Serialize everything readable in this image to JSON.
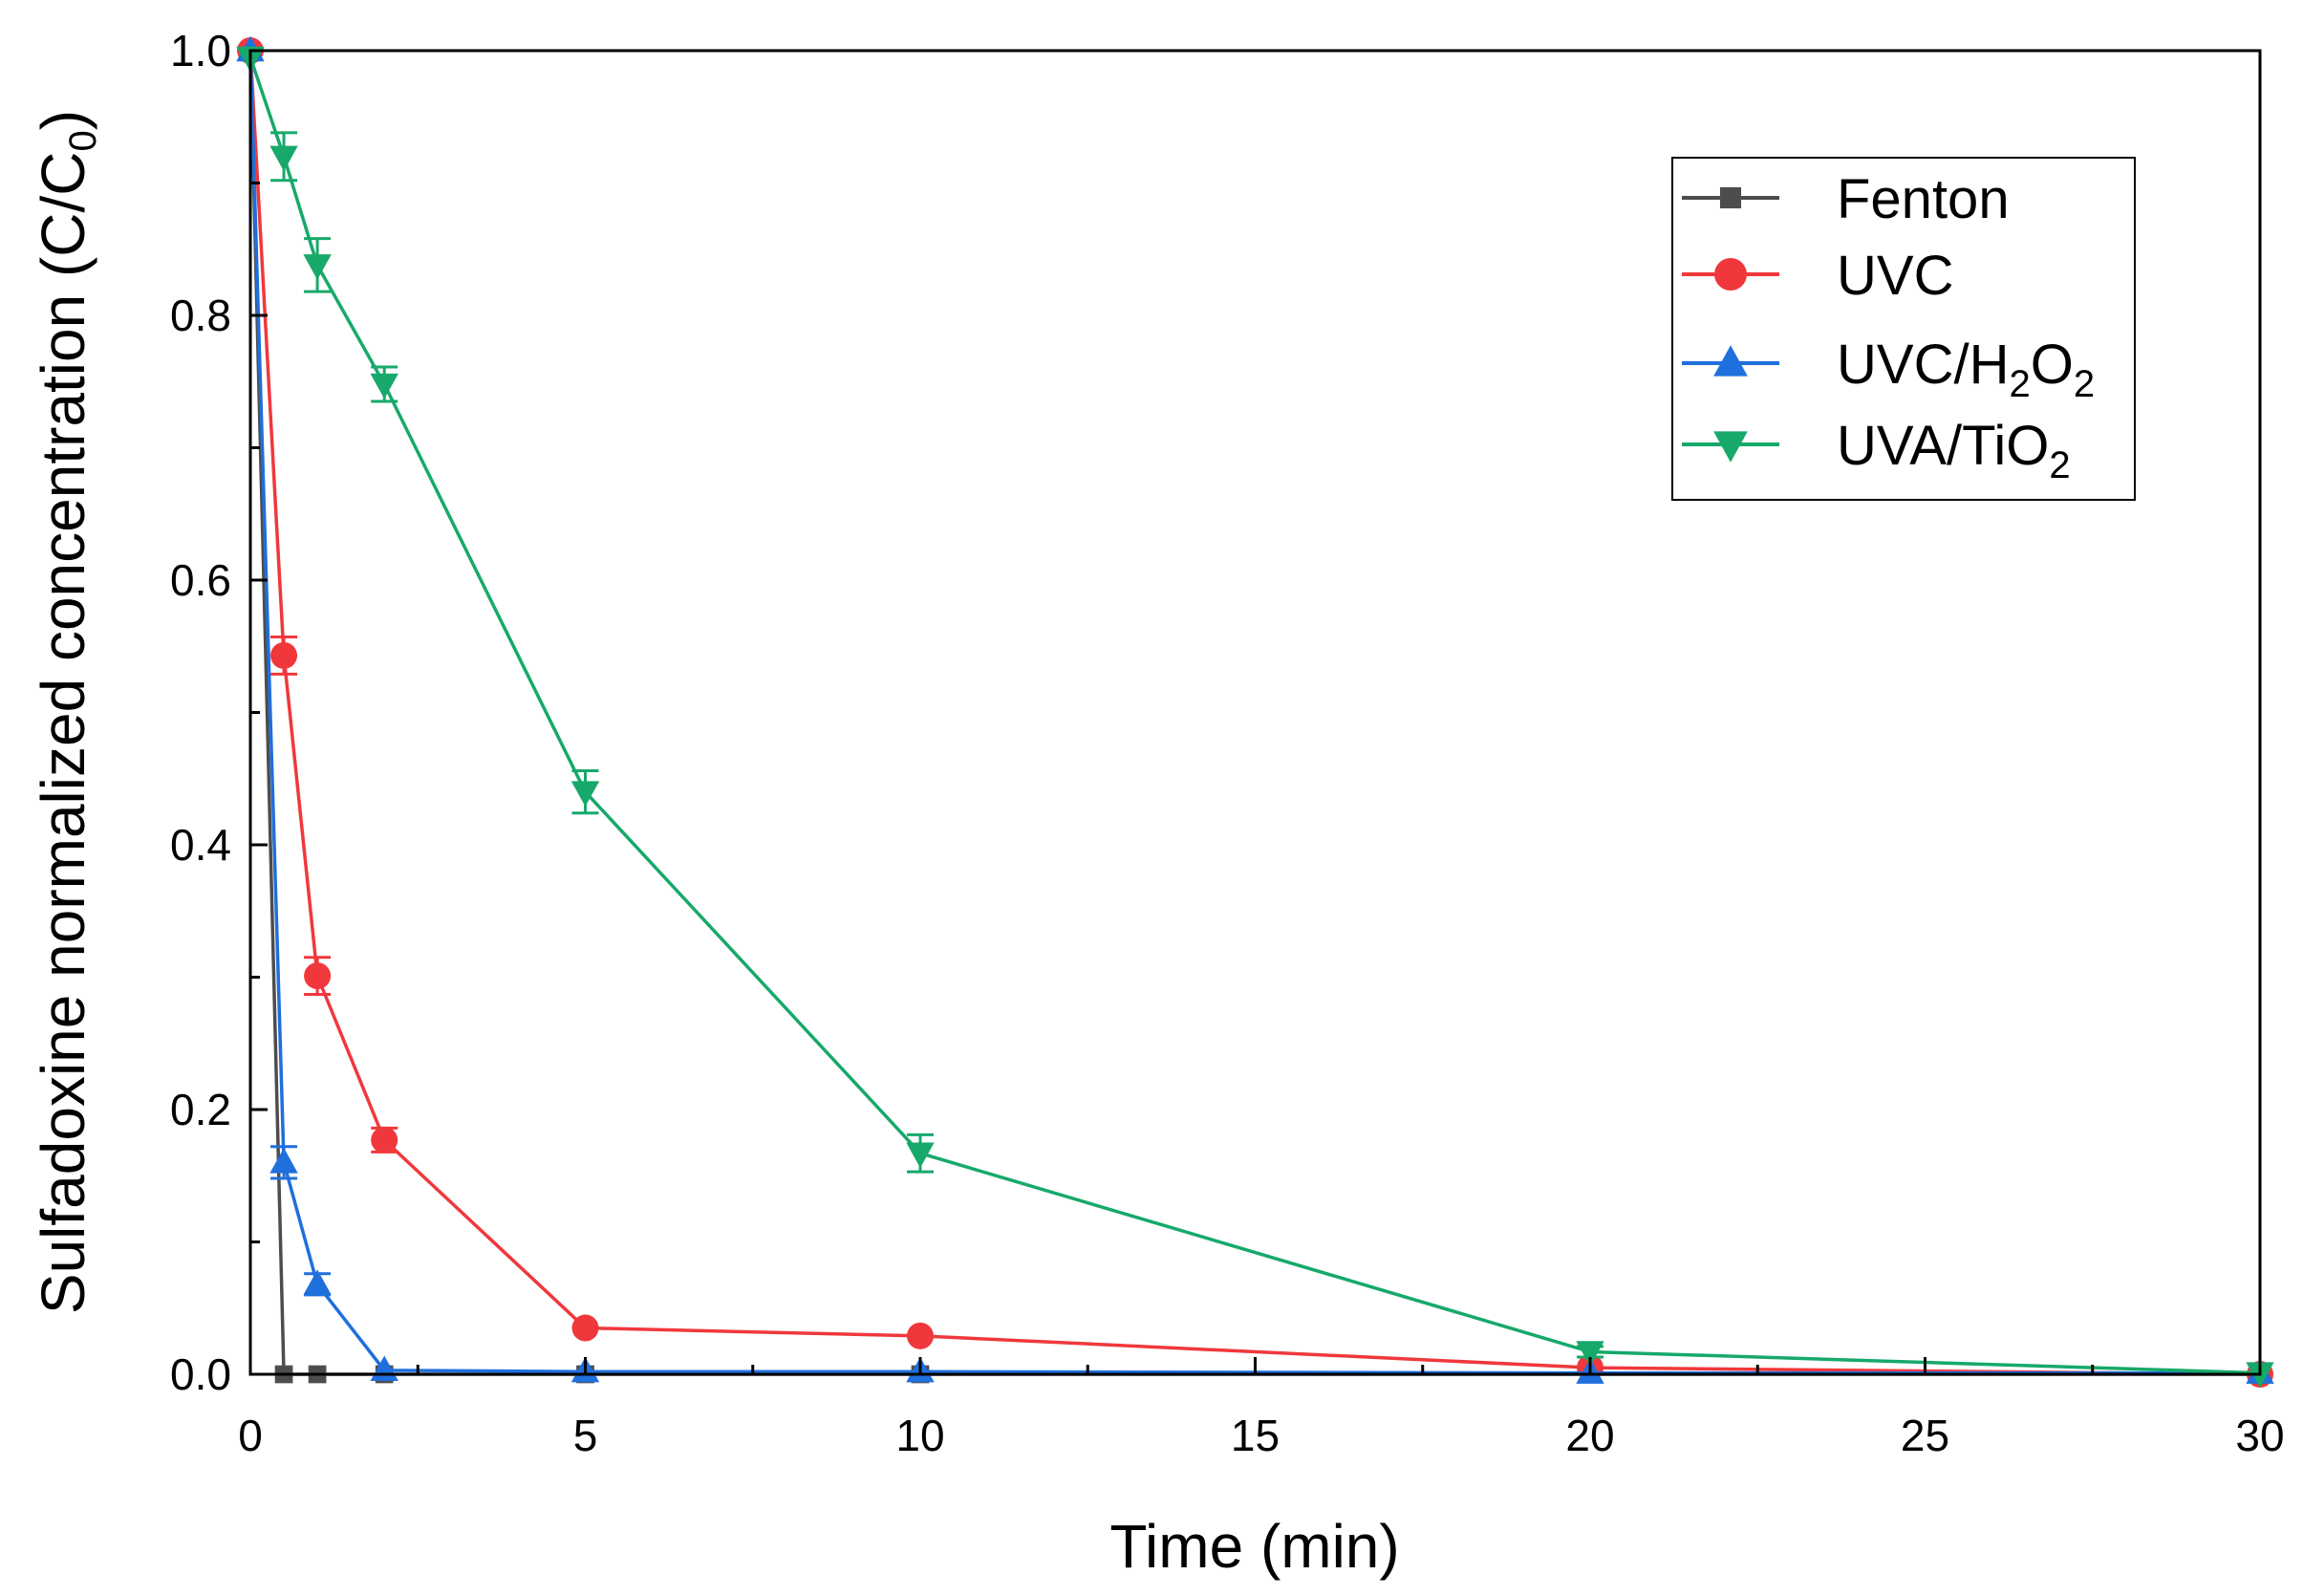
{
  "chart_data": {
    "type": "line",
    "title": "",
    "xlabel": "Time (min)",
    "ylabel": {
      "main": "Sulfadoxine normalized concentration (C/C",
      "sub": "0",
      "close": ")"
    },
    "xlim": [
      0,
      30
    ],
    "ylim": [
      0,
      1.0
    ],
    "xticks": [
      "0",
      "5",
      "10",
      "15",
      "20",
      "25",
      "30"
    ],
    "xtick_values": [
      0,
      5,
      10,
      15,
      20,
      25,
      30
    ],
    "yticks": [
      "0.0",
      "0.2",
      "0.4",
      "0.6",
      "0.8",
      "1.0"
    ],
    "ytick_values": [
      0,
      0.2,
      0.4,
      0.6,
      0.8,
      1.0
    ],
    "grid": false,
    "legend_position": "top-right",
    "series": [
      {
        "name": "Fenton",
        "legend": {
          "base": "Fenton",
          "parts": []
        },
        "color": "#4d4d4d",
        "marker": "square",
        "x": [
          0,
          0.5,
          1,
          2,
          5,
          10,
          20,
          30
        ],
        "y": [
          1.0,
          0.0,
          0.0,
          0.0,
          0.0,
          0.0,
          0.0,
          0.0
        ],
        "err": [
          0,
          0,
          0,
          0,
          0,
          0,
          0,
          0
        ]
      },
      {
        "name": "UVC",
        "legend": {
          "base": "UVC",
          "parts": []
        },
        "color": "#f0383c",
        "marker": "circle",
        "x": [
          0,
          0.5,
          1,
          2,
          5,
          10,
          20,
          30
        ],
        "y": [
          1.0,
          0.543,
          0.301,
          0.177,
          0.035,
          0.029,
          0.005,
          0.0
        ],
        "err": [
          0,
          0.014,
          0.014,
          0.009,
          0,
          0,
          0,
          0
        ]
      },
      {
        "name": "UVC/H2O2",
        "legend": {
          "base": "UVC/H",
          "parts": [
            {
              "sub": "2"
            },
            {
              "text": "O"
            },
            {
              "sub": "2"
            }
          ]
        },
        "color": "#1f6fdc",
        "marker": "triangle-up",
        "x": [
          0,
          0.5,
          1,
          2,
          5,
          10,
          20,
          30
        ],
        "y": [
          1.0,
          0.16,
          0.068,
          0.003,
          0.002,
          0.002,
          0.001,
          0.001
        ],
        "err": [
          0,
          0.012,
          0.008,
          0,
          0,
          0,
          0,
          0
        ]
      },
      {
        "name": "UVA/TiO2",
        "legend": {
          "base": "UVA/TiO",
          "parts": [
            {
              "sub": "2"
            }
          ]
        },
        "color": "#17a96a",
        "marker": "triangle-down",
        "x": [
          0,
          0.5,
          1,
          2,
          5,
          10,
          20,
          30
        ],
        "y": [
          0.995,
          0.92,
          0.838,
          0.748,
          0.44,
          0.167,
          0.017,
          0.001
        ],
        "err": [
          0,
          0.018,
          0.02,
          0.013,
          0.016,
          0.014,
          0.004,
          0
        ]
      }
    ]
  }
}
